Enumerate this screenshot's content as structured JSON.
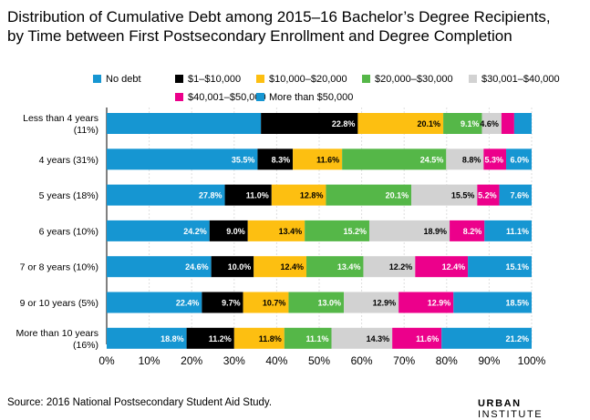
{
  "title_line1": "Distribution of Cumulative Debt among 2015–16 Bachelor’s Degree Recipients,",
  "title_line2": "by Time between First Postsecondary Enrollment and Degree Completion",
  "source": "Source: 2016 National Postsecondary Student Aid Study.",
  "brand": {
    "part1": "URBAN",
    "part2": "INSTITUTE"
  },
  "chart_data": {
    "type": "bar",
    "orientation": "horizontal",
    "stacked": true,
    "title": "Distribution of Cumulative Debt among 2015–16 Bachelor’s Degree Recipients, by Time between First Postsecondary Enrollment and Degree Completion",
    "xlim": [
      0,
      100
    ],
    "x_ticks": [
      "0%",
      "10%",
      "20%",
      "30%",
      "40%",
      "50%",
      "60%",
      "70%",
      "80%",
      "90%",
      "100%"
    ],
    "legend_position": "top",
    "categories": [
      "Less than 4 years (11%)",
      "4 years (31%)",
      "5 years (18%)",
      "6 years (10%)",
      "7 or 8 years (10%)",
      "9 or 10 years (5%)",
      "More than 10 years (16%)"
    ],
    "category_lines": [
      [
        "Less than 4 years",
        "(11%)"
      ],
      [
        "4 years (31%)"
      ],
      [
        "5 years (18%)"
      ],
      [
        "6 years (10%)"
      ],
      [
        "7 or 8 years (10%)"
      ],
      [
        "9 or 10 years (5%)"
      ],
      [
        "More than 10 years",
        "(16%)"
      ]
    ],
    "series": [
      {
        "name": "No debt",
        "color": "#1696d2",
        "label_color": "#ffffff",
        "values": [
          36.3,
          35.5,
          27.8,
          24.2,
          24.6,
          22.4,
          18.8
        ],
        "labels": [
          "",
          "35.5%",
          "27.8%",
          "24.2%",
          "24.6%",
          "22.4%",
          "18.8%"
        ]
      },
      {
        "name": "$1–$10,000",
        "color": "#000000",
        "label_color": "#ffffff",
        "values": [
          22.8,
          8.3,
          11.0,
          9.0,
          10.0,
          9.7,
          11.2
        ],
        "labels": [
          "22.8%",
          "8.3%",
          "11.0%",
          "9.0%",
          "10.0%",
          "9.7%",
          "11.2%"
        ]
      },
      {
        "name": "$10,000–$20,000",
        "color": "#fdbf11",
        "label_color": "#000000",
        "values": [
          20.1,
          11.6,
          12.8,
          13.4,
          12.4,
          10.7,
          11.8
        ],
        "labels": [
          "20.1%",
          "11.6%",
          "12.8%",
          "13.4%",
          "12.4%",
          "10.7%",
          "11.8%"
        ]
      },
      {
        "name": "$20,000–$30,000",
        "color": "#55b748",
        "label_color": "#ffffff",
        "values": [
          9.1,
          24.5,
          20.1,
          15.2,
          13.4,
          13.0,
          11.1
        ],
        "labels": [
          "9.1%",
          "24.5%",
          "20.1%",
          "15.2%",
          "13.4%",
          "13.0%",
          "11.1%"
        ]
      },
      {
        "name": "$30,001–$40,000",
        "color": "#d2d2d2",
        "label_color": "#000000",
        "values": [
          4.6,
          8.8,
          15.5,
          18.9,
          12.2,
          12.9,
          14.3
        ],
        "labels": [
          "4.6%",
          "8.8%",
          "15.5%",
          "18.9%",
          "12.2%",
          "12.9%",
          "14.3%"
        ]
      },
      {
        "name": "$40,001–$50,000",
        "color": "#ec008b",
        "label_color": "#ffffff",
        "values": [
          3.0,
          5.3,
          5.2,
          8.2,
          12.4,
          12.9,
          11.6
        ],
        "labels": [
          "",
          "5.3%",
          "5.2%",
          "8.2%",
          "12.4%",
          "12.9%",
          "11.6%"
        ]
      },
      {
        "name": "More than $50,000",
        "color": "#1696d2",
        "label_color": "#ffffff",
        "values": [
          4.1,
          6.0,
          7.6,
          11.1,
          15.1,
          18.5,
          21.2
        ],
        "labels": [
          "",
          "6.0%",
          "7.6%",
          "11.1%",
          "15.1%",
          "18.5%",
          "21.2%"
        ]
      }
    ]
  }
}
